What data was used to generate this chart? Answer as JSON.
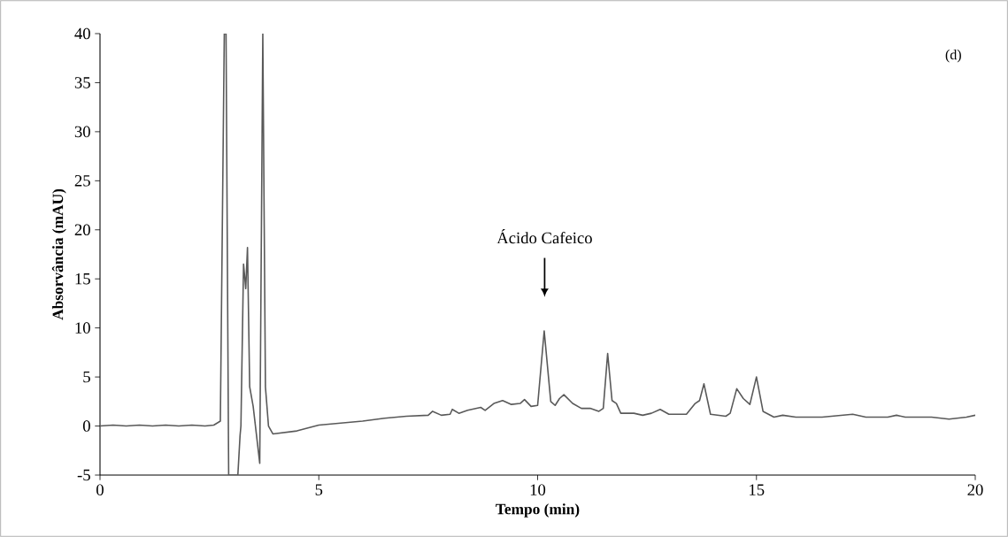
{
  "chart_data": {
    "type": "line",
    "xlabel": "Tempo (min)",
    "ylabel": "Absorvância (mAU)",
    "xlim": [
      0,
      20
    ],
    "ylim": [
      -5,
      40
    ],
    "xticks": [
      0,
      5,
      10,
      15,
      20
    ],
    "yticks": [
      -5,
      0,
      5,
      10,
      15,
      20,
      25,
      30,
      35,
      40
    ],
    "grid": false,
    "marker": "none",
    "line_style": "solid",
    "annotations": [
      "Ácido Cafeico",
      "(d)"
    ],
    "series": [
      {
        "color": "#595959",
        "x": [
          0,
          0.3,
          0.6,
          0.9,
          1.2,
          1.5,
          1.8,
          2.1,
          2.4,
          2.6,
          2.75,
          2.84,
          2.88,
          2.94,
          2.97,
          3.15,
          3.2,
          3.22,
          3.28,
          3.33,
          3.37,
          3.42,
          3.5,
          3.65,
          3.72,
          3.78,
          3.85,
          3.95,
          4.5,
          5,
          5.5,
          6,
          6.5,
          7,
          7.5,
          7.6,
          7.8,
          8,
          8.05,
          8.2,
          8.4,
          8.7,
          8.8,
          9,
          9.2,
          9.4,
          9.6,
          9.7,
          9.85,
          10,
          10.15,
          10.3,
          10.4,
          10.5,
          10.6,
          10.8,
          11,
          11.2,
          11.4,
          11.5,
          11.6,
          11.7,
          11.8,
          11.9,
          12.2,
          12.4,
          12.6,
          12.8,
          13,
          13.4,
          13.6,
          13.7,
          13.8,
          13.95,
          14.3,
          14.4,
          14.55,
          14.7,
          14.85,
          15,
          15.15,
          15.4,
          15.6,
          15.9,
          16.5,
          17.2,
          17.5,
          18,
          18.2,
          18.4,
          19,
          19.4,
          19.8,
          20
        ],
        "values": [
          0,
          0.1,
          0,
          0.1,
          0,
          0.1,
          0,
          0.1,
          0,
          0.1,
          0.5,
          40,
          40,
          -5,
          -5,
          -5,
          -1,
          0,
          16.5,
          14,
          18.2,
          4,
          2,
          -3.8,
          40,
          4,
          0,
          -0.8,
          -0.5,
          0.1,
          0.3,
          0.5,
          0.8,
          1,
          1.1,
          1.5,
          1.1,
          1.2,
          1.7,
          1.3,
          1.6,
          1.9,
          1.6,
          2.3,
          2.6,
          2.2,
          2.3,
          2.7,
          2,
          2.1,
          9.7,
          2.5,
          2.1,
          2.8,
          3.2,
          2.3,
          1.8,
          1.8,
          1.5,
          1.8,
          7.4,
          2.6,
          2.3,
          1.3,
          1.3,
          1.1,
          1.3,
          1.7,
          1.2,
          1.2,
          2.3,
          2.6,
          4.3,
          1.2,
          1,
          1.3,
          3.8,
          2.8,
          2.2,
          5,
          1.5,
          0.9,
          1.1,
          0.9,
          0.9,
          1.2,
          0.9,
          0.9,
          1.1,
          0.9,
          0.9,
          0.7,
          0.9,
          1.1
        ]
      }
    ]
  }
}
